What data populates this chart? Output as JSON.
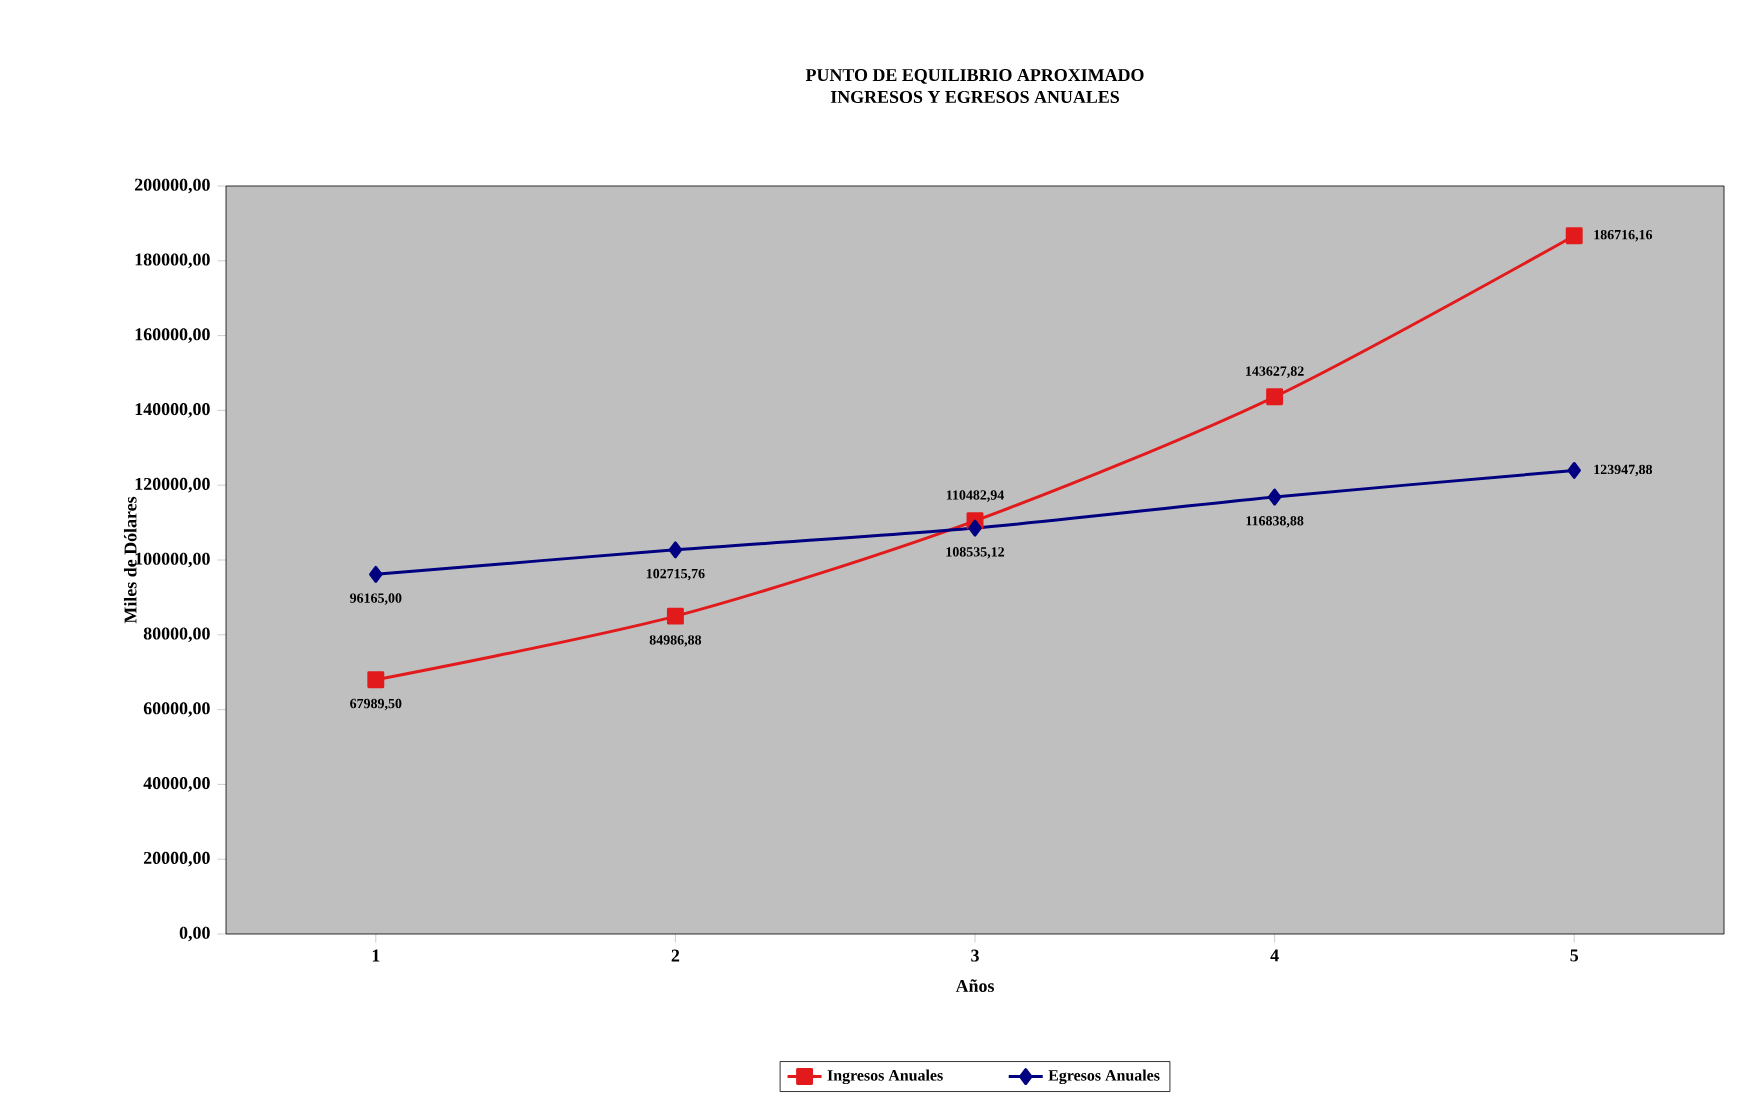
{
  "chart_data": {
    "type": "line",
    "title": "PUNTO DE EQUILIBRIO APROXIMADO",
    "subtitle": "INGRESOS Y EGRESOS ANUALES",
    "xlabel": "Años",
    "ylabel": "Miles de Dólares",
    "categories": [
      "1",
      "2",
      "3",
      "4",
      "5"
    ],
    "series": [
      {
        "name": "Ingresos Anuales",
        "color": "#e31a1c",
        "marker": "square",
        "values": [
          67989.5,
          84986.88,
          110482.94,
          143627.82,
          186716.16
        ],
        "value_labels": [
          "67989,50",
          "84986,88",
          "110482,94",
          "143627,82",
          "186716,16"
        ]
      },
      {
        "name": "Egresos Anuales",
        "color": "#000080",
        "marker": "diamond",
        "values": [
          96165.0,
          102715.76,
          108535.12,
          116838.88,
          123947.88
        ],
        "value_labels": [
          "96165,00",
          "102715,76",
          "108535,12",
          "116838,88",
          "123947,88"
        ]
      }
    ],
    "ylim": [
      0,
      200000
    ],
    "yticks": [
      {
        "value": 0,
        "label": "0,00"
      },
      {
        "value": 20000,
        "label": "20000,00"
      },
      {
        "value": 40000,
        "label": "40000,00"
      },
      {
        "value": 60000,
        "label": "60000,00"
      },
      {
        "value": 80000,
        "label": "80000,00"
      },
      {
        "value": 100000,
        "label": "100000,00"
      },
      {
        "value": 120000,
        "label": "120000,00"
      },
      {
        "value": 140000,
        "label": "140000,00"
      },
      {
        "value": 160000,
        "label": "160000,00"
      },
      {
        "value": 180000,
        "label": "180000,00"
      },
      {
        "value": 200000,
        "label": "200000,00"
      }
    ],
    "grid": false,
    "legend": "bottom"
  }
}
